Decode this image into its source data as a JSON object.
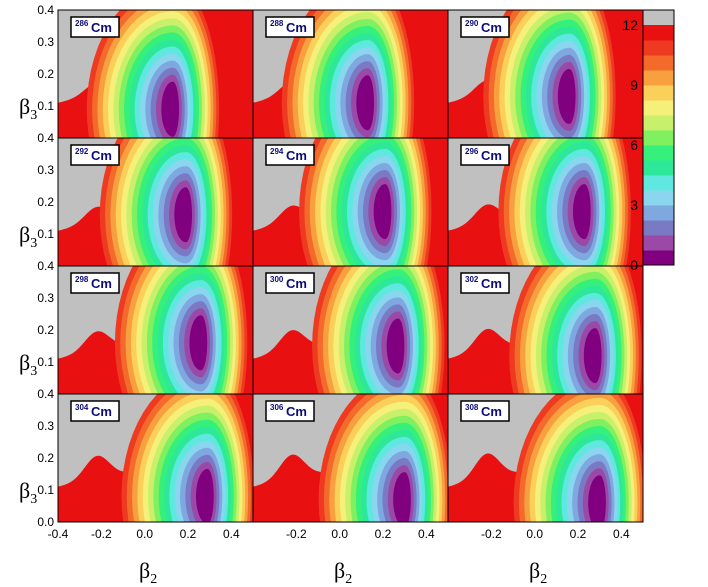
{
  "chart_data": {
    "type": "heatmap",
    "nuclei": [
      {
        "mass": "286",
        "element": "Cm"
      },
      {
        "mass": "288",
        "element": "Cm"
      },
      {
        "mass": "290",
        "element": "Cm"
      },
      {
        "mass": "292",
        "element": "Cm"
      },
      {
        "mass": "294",
        "element": "Cm"
      },
      {
        "mass": "296",
        "element": "Cm"
      },
      {
        "mass": "298",
        "element": "Cm"
      },
      {
        "mass": "300",
        "element": "Cm"
      },
      {
        "mass": "302",
        "element": "Cm"
      },
      {
        "mass": "304",
        "element": "Cm"
      },
      {
        "mass": "306",
        "element": "Cm"
      },
      {
        "mass": "308",
        "element": "Cm"
      }
    ],
    "xlabel": "β",
    "xlabel_sub": "2",
    "ylabel": "β",
    "ylabel_sub": "3",
    "x_ticks": [
      "-0.4",
      "-0.2",
      "0.0",
      "0.2",
      "0.4"
    ],
    "x_tick_values": [
      -0.4,
      -0.2,
      0.0,
      0.2,
      0.4
    ],
    "y_ticks_upper": [
      "0.4",
      "0.3",
      "0.2",
      "0.1"
    ],
    "y_ticks_bottom": [
      "0.4",
      "0.3",
      "0.2",
      "0.1",
      "0.0"
    ],
    "y_tick_values": [
      0.4,
      0.3,
      0.2,
      0.1,
      0.0
    ],
    "xlim": [
      -0.4,
      0.5
    ],
    "ylim": [
      0.0,
      0.4
    ],
    "colorbar": {
      "ticks": [
        "12",
        "9",
        "6",
        "3",
        "0"
      ],
      "tick_values": [
        12,
        9,
        6,
        3,
        0
      ],
      "range": [
        0,
        12
      ],
      "colors": [
        "#800080",
        "#9a4aa6",
        "#7a7ac4",
        "#7fa8e0",
        "#8ad6ee",
        "#5fe8e0",
        "#2ee89a",
        "#35f07a",
        "#7ff060",
        "#c8f06a",
        "#f5f07a",
        "#fad05a",
        "#f8a040",
        "#f46a2a",
        "#ee3a20",
        "#e81010"
      ],
      "above_range_color": "#c0c0c0"
    },
    "approx_minima": [
      {
        "nucleus": "286Cm",
        "beta2": 0.13,
        "beta3": 0.09
      },
      {
        "nucleus": "288Cm",
        "beta2": 0.13,
        "beta3": 0.11
      },
      {
        "nucleus": "290Cm",
        "beta2": 0.16,
        "beta3": 0.13
      },
      {
        "nucleus": "292Cm",
        "beta2": 0.19,
        "beta3": 0.16
      },
      {
        "nucleus": "294Cm",
        "beta2": 0.21,
        "beta3": 0.17
      },
      {
        "nucleus": "296Cm",
        "beta2": 0.23,
        "beta3": 0.17
      },
      {
        "nucleus": "298Cm",
        "beta2": 0.26,
        "beta3": 0.16
      },
      {
        "nucleus": "300Cm",
        "beta2": 0.27,
        "beta3": 0.15
      },
      {
        "nucleus": "302Cm",
        "beta2": 0.28,
        "beta3": 0.12
      },
      {
        "nucleus": "304Cm",
        "beta2": 0.29,
        "beta3": 0.08
      },
      {
        "nucleus": "306Cm",
        "beta2": 0.3,
        "beta3": 0.07
      },
      {
        "nucleus": "308Cm",
        "beta2": 0.3,
        "beta3": 0.06
      }
    ]
  }
}
